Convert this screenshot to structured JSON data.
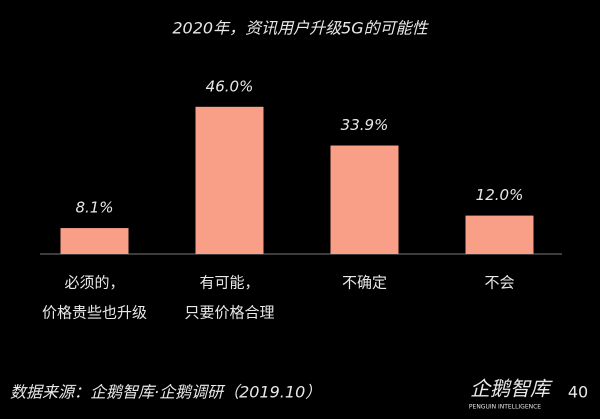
{
  "chart_data": {
    "type": "bar",
    "title": "2020年，资讯用户升级5G的可能性",
    "categories": [
      [
        "必须的，",
        "价格贵些也升级"
      ],
      [
        "有可能，",
        "只要价格合理"
      ],
      [
        "不确定"
      ],
      [
        "不会"
      ]
    ],
    "values": [
      8.1,
      46.0,
      33.9,
      12.0
    ],
    "value_labels": [
      "8.1%",
      "46.0%",
      "33.9%",
      "12.0%"
    ],
    "color": "#fa9f87"
  },
  "footer": {
    "source": "数据来源：企鹅智库·企鹅调研（2019.10）",
    "logo": "企鹅智库",
    "logo_sub": "PENGUIN INTELLIGENCE",
    "page": "40"
  }
}
